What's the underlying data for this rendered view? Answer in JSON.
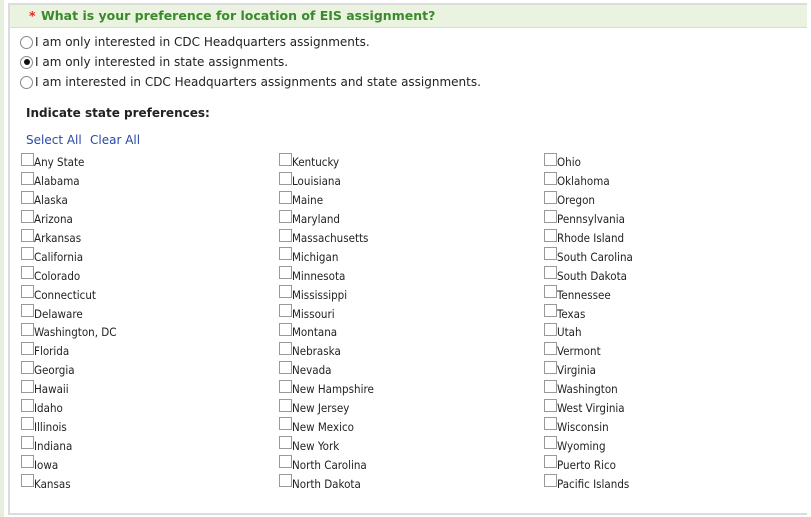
{
  "question": {
    "required_mark": "*",
    "text": "What is your preference for location of EIS assignment?"
  },
  "options": [
    {
      "label": "I am only interested in CDC Headquarters assignments.",
      "selected": false
    },
    {
      "label": "I am only interested in state assignments.",
      "selected": true
    },
    {
      "label": "I am interested in CDC Headquarters assignments and state assignments.",
      "selected": false
    }
  ],
  "state_section": {
    "title": "Indicate state preferences:",
    "select_all": "Select All",
    "clear_all": "Clear All"
  },
  "columns": [
    [
      "Any State",
      "Alabama",
      "Alaska",
      "Arizona",
      "Arkansas",
      "California",
      "Colorado",
      "Connecticut",
      "Delaware",
      "Washington, DC",
      "Florida",
      "Georgia",
      "Hawaii",
      "Idaho",
      "Illinois",
      "Indiana",
      "Iowa",
      "Kansas"
    ],
    [
      "Kentucky",
      "Louisiana",
      "Maine",
      "Maryland",
      "Massachusetts",
      "Michigan",
      "Minnesota",
      "Mississippi",
      "Missouri",
      "Montana",
      "Nebraska",
      "Nevada",
      "New Hampshire",
      "New Jersey",
      "New Mexico",
      "New York",
      "North Carolina",
      "North Dakota"
    ],
    [
      "Ohio",
      "Oklahoma",
      "Oregon",
      "Pennsylvania",
      "Rhode Island",
      "South Carolina",
      "South Dakota",
      "Tennessee",
      "Texas",
      "Utah",
      "Vermont",
      "Virginia",
      "Washington",
      "West Virginia",
      "Wisconsin",
      "Wyoming",
      "Puerto Rico",
      "Pacific Islands"
    ]
  ],
  "colors": {
    "header_bg": "#e9f3df",
    "question_text": "#3a8a2c",
    "required": "#e0281f",
    "link": "#2a49a6"
  }
}
